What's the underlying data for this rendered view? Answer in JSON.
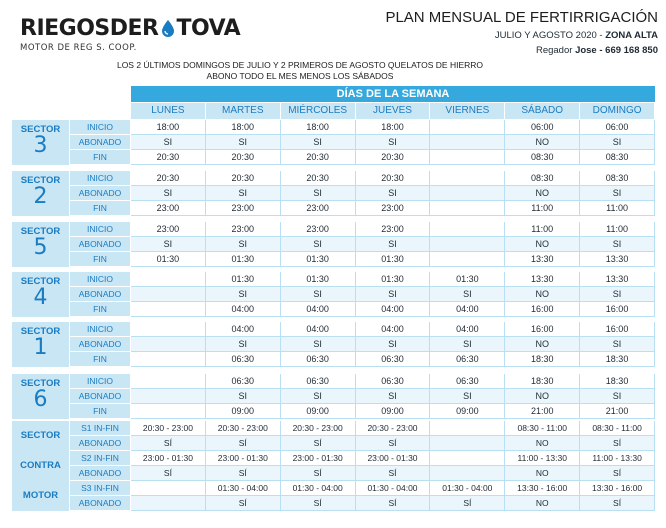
{
  "logo": {
    "brand_left": "RIEGOSDER",
    "brand_right": "TOVA",
    "sub": "MOTOR DE REG S. COOP."
  },
  "title": {
    "heading": "PLAN MENSUAL DE FERTIRRIGACIÓN",
    "period": "JULIO Y AGOSTO 2020 - ",
    "zone": "ZONA ALTA",
    "contact_label": "Regador ",
    "contact": "Jose - 669 168 850"
  },
  "notes": {
    "line1": "LOS 2 ÚLTIMOS DOMINGOS DE JULIO Y 2 PRIMEROS DE AGOSTO QUELATOS DE HIERRO",
    "line2": "ABONO TODO EL MES MENOS LOS SÁBADOS"
  },
  "days_header": "DÍAS DE LA SEMANA",
  "days": [
    "LUNES",
    "MARTES",
    "MIÉRCOLES",
    "JUEVES",
    "VIERNES",
    "SÁBADO",
    "DOMINGO"
  ],
  "row_labels": [
    "INICIO",
    "ABONADO",
    "FIN"
  ],
  "sector_word": "SECTOR",
  "sectors": [
    {
      "num": "3",
      "rows": [
        [
          "18:00",
          "18:00",
          "18:00",
          "18:00",
          "",
          "06:00",
          "06:00"
        ],
        [
          "SI",
          "SI",
          "SI",
          "SI",
          "",
          "NO",
          "SI"
        ],
        [
          "20:30",
          "20:30",
          "20:30",
          "20:30",
          "",
          "08:30",
          "08:30"
        ]
      ]
    },
    {
      "num": "2",
      "rows": [
        [
          "20:30",
          "20:30",
          "20:30",
          "20:30",
          "",
          "08:30",
          "08:30"
        ],
        [
          "SI",
          "SI",
          "SI",
          "SI",
          "",
          "NO",
          "SI"
        ],
        [
          "23:00",
          "23:00",
          "23:00",
          "23:00",
          "",
          "11:00",
          "11:00"
        ]
      ]
    },
    {
      "num": "5",
      "rows": [
        [
          "23:00",
          "23:00",
          "23:00",
          "23:00",
          "",
          "11:00",
          "11:00"
        ],
        [
          "SI",
          "SI",
          "SI",
          "SI",
          "",
          "NO",
          "SI"
        ],
        [
          "01:30",
          "01:30",
          "01:30",
          "01:30",
          "",
          "13:30",
          "13:30"
        ]
      ]
    },
    {
      "num": "4",
      "rows": [
        [
          "",
          "01:30",
          "01:30",
          "01:30",
          "01:30",
          "13:30",
          "13:30"
        ],
        [
          "",
          "SI",
          "SI",
          "SI",
          "SI",
          "NO",
          "SI"
        ],
        [
          "",
          "04:00",
          "04:00",
          "04:00",
          "04:00",
          "16:00",
          "16:00"
        ]
      ]
    },
    {
      "num": "1",
      "rows": [
        [
          "",
          "04:00",
          "04:00",
          "04:00",
          "04:00",
          "16:00",
          "16:00"
        ],
        [
          "",
          "SI",
          "SI",
          "SI",
          "SI",
          "NO",
          "SI"
        ],
        [
          "",
          "06:30",
          "06:30",
          "06:30",
          "06:30",
          "18:30",
          "18:30"
        ]
      ]
    },
    {
      "num": "6",
      "rows": [
        [
          "",
          "06:30",
          "06:30",
          "06:30",
          "06:30",
          "18:30",
          "18:30"
        ],
        [
          "",
          "SI",
          "SI",
          "SI",
          "SI",
          "NO",
          "SI"
        ],
        [
          "",
          "09:00",
          "09:00",
          "09:00",
          "09:00",
          "21:00",
          "21:00"
        ]
      ]
    }
  ],
  "motor_section": {
    "labels": [
      "SECTOR",
      "CONTRA",
      "MOTOR"
    ],
    "row_labels": [
      "S1 IN-FIN",
      "ABONADO",
      "S2 IN-FIN",
      "ABONADO",
      "S3 IN-FIN",
      "ABONADO"
    ],
    "rows": [
      [
        "20:30 - 23:00",
        "20:30 - 23:00",
        "20:30 - 23:00",
        "20:30 - 23:00",
        "",
        "08:30 - 11:00",
        "08:30 - 11:00"
      ],
      [
        "SÍ",
        "SÍ",
        "SÍ",
        "SÍ",
        "",
        "NO",
        "SÍ"
      ],
      [
        "23:00 - 01:30",
        "23:00 - 01:30",
        "23:00 - 01:30",
        "23:00 - 01:30",
        "",
        "11:00 - 13:30",
        "11:00 - 13:30"
      ],
      [
        "SÍ",
        "SÍ",
        "SÍ",
        "SÍ",
        "",
        "NO",
        "SÍ"
      ],
      [
        "",
        "01:30 - 04:00",
        "01:30 - 04:00",
        "01:30 - 04:00",
        "01:30 - 04:00",
        "13:30 - 16:00",
        "13:30 - 16:00"
      ],
      [
        "",
        "SÍ",
        "SÍ",
        "SÍ",
        "SÍ",
        "NO",
        "SÍ"
      ]
    ]
  },
  "colors": {
    "accent": "#35a9de",
    "light": "#c9e6f5",
    "brand_blue": "#1a7cc1"
  }
}
